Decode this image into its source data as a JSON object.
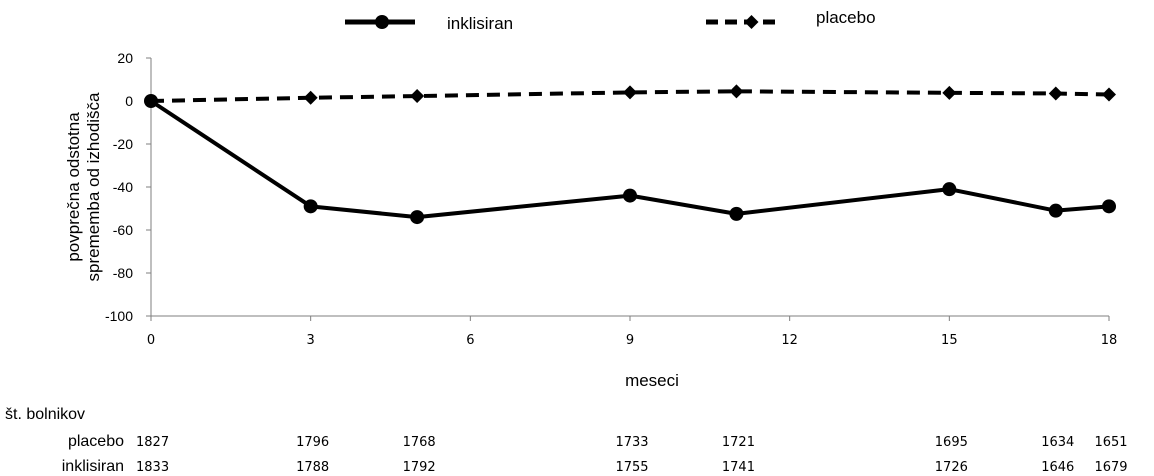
{
  "chart_data": {
    "type": "line",
    "legend_position": "top-center",
    "ylabel_lines": [
      "povprečna odstotna",
      "sprememba od izhodišča"
    ],
    "xlabel": "meseci",
    "ylim": [
      -100,
      20
    ],
    "xlim": [
      0,
      18
    ],
    "y_ticks": [
      20,
      0,
      -20,
      -40,
      -60,
      -80,
      -100
    ],
    "x_ticks": [
      0,
      3,
      6,
      9,
      12,
      15,
      18
    ],
    "grid": false,
    "series": [
      {
        "name": "inklisiran",
        "line_style": "solid",
        "marker": "circle",
        "color": "#000000",
        "x": [
          0,
          3,
          5,
          9,
          11,
          15,
          17,
          18
        ],
        "y": [
          0,
          -49,
          -54,
          -44,
          -52.5,
          -41,
          -51,
          -49
        ]
      },
      {
        "name": "placebo",
        "line_style": "dashed",
        "marker": "diamond",
        "color": "#000000",
        "x": [
          0,
          3,
          5,
          9,
          11,
          15,
          17,
          18
        ],
        "y": [
          0,
          1.5,
          2.3,
          4,
          4.5,
          3.8,
          3.5,
          3
        ]
      }
    ]
  },
  "patients_table": {
    "title": "št. bolnikov",
    "rows": [
      {
        "label": "placebo",
        "x": [
          0,
          3,
          5,
          9,
          11,
          15,
          17,
          18
        ],
        "values": [
          "1827",
          "1796",
          "1768",
          "1733",
          "1721",
          "1695",
          "1634",
          "1651"
        ]
      },
      {
        "label": "inklisiran",
        "x": [
          0,
          3,
          5,
          9,
          11,
          15,
          17,
          18
        ],
        "values": [
          "1833",
          "1788",
          "1792",
          "1755",
          "1741",
          "1726",
          "1646",
          "1679"
        ]
      }
    ]
  }
}
